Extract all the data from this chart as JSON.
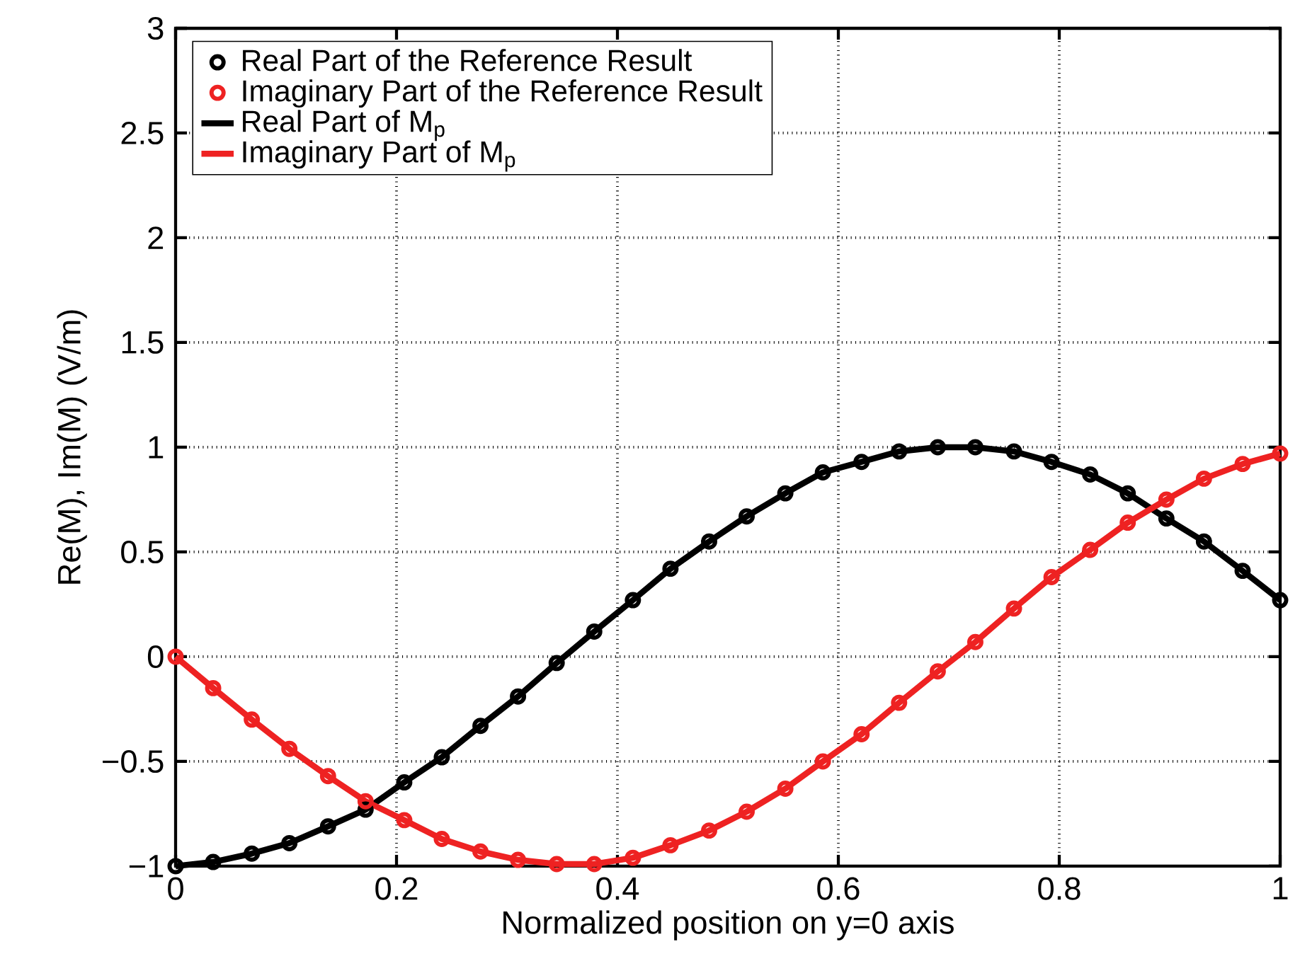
{
  "chart_data": {
    "type": "line",
    "xlabel": "Normalized position on y=0 axis",
    "ylabel": "Re(M), Im(M) (V/m)",
    "x": [
      0,
      0.034,
      0.069,
      0.103,
      0.138,
      0.172,
      0.207,
      0.241,
      0.276,
      0.31,
      0.345,
      0.379,
      0.414,
      0.448,
      0.483,
      0.517,
      0.552,
      0.586,
      0.621,
      0.655,
      0.69,
      0.724,
      0.759,
      0.793,
      0.828,
      0.862,
      0.897,
      0.931,
      0.966,
      1
    ],
    "series": [
      {
        "name": "Real Part of the Reference Result",
        "type": "scatter",
        "marker": "circle",
        "color": "#000000",
        "values": [
          -1.0,
          -0.98,
          -0.94,
          -0.89,
          -0.81,
          -0.73,
          -0.6,
          -0.48,
          -0.33,
          -0.19,
          -0.03,
          0.12,
          0.27,
          0.42,
          0.55,
          0.67,
          0.78,
          0.88,
          0.93,
          0.98,
          1.0,
          1.0,
          0.98,
          0.93,
          0.87,
          0.78,
          0.66,
          0.55,
          0.41,
          0.27
        ]
      },
      {
        "name": "Imaginary Part of the Reference Result",
        "type": "scatter",
        "marker": "circle",
        "color": "#ee2222",
        "values": [
          0,
          -0.15,
          -0.3,
          -0.44,
          -0.57,
          -0.69,
          -0.78,
          -0.87,
          -0.93,
          -0.97,
          -0.99,
          -0.99,
          -0.96,
          -0.9,
          -0.83,
          -0.74,
          -0.63,
          -0.5,
          -0.37,
          -0.22,
          -0.07,
          0.07,
          0.23,
          0.38,
          0.51,
          0.64,
          0.75,
          0.85,
          0.92,
          0.97
        ]
      },
      {
        "name": "Real Part of M$_{p}$",
        "line_style": "solid",
        "color": "#000000",
        "values": [
          -1.0,
          -0.98,
          -0.94,
          -0.89,
          -0.81,
          -0.73,
          -0.6,
          -0.48,
          -0.33,
          -0.19,
          -0.03,
          0.12,
          0.27,
          0.42,
          0.55,
          0.67,
          0.78,
          0.88,
          0.93,
          0.98,
          1.0,
          1.0,
          0.98,
          0.93,
          0.87,
          0.78,
          0.66,
          0.55,
          0.41,
          0.27
        ]
      },
      {
        "name": "Imaginary Part of M$_{p}$",
        "line_style": "solid",
        "color": "#ee2222",
        "values": [
          0,
          -0.15,
          -0.3,
          -0.44,
          -0.57,
          -0.69,
          -0.78,
          -0.87,
          -0.93,
          -0.97,
          -0.99,
          -0.99,
          -0.96,
          -0.9,
          -0.83,
          -0.74,
          -0.63,
          -0.5,
          -0.37,
          -0.22,
          -0.07,
          0.07,
          0.23,
          0.38,
          0.51,
          0.64,
          0.75,
          0.85,
          0.92,
          0.97
        ]
      }
    ],
    "xlim": [
      0,
      1
    ],
    "xticks": [
      0,
      0.2,
      0.4,
      0.6,
      0.8,
      1
    ],
    "ylim": [
      -1,
      3
    ],
    "yticks": [
      {
        "value": -1,
        "label": "−1"
      },
      {
        "value": -0.5,
        "label": "−0.5"
      },
      0,
      0.5,
      1,
      1.5,
      2,
      2.5,
      3
    ],
    "grid": true,
    "legend": "top left"
  }
}
